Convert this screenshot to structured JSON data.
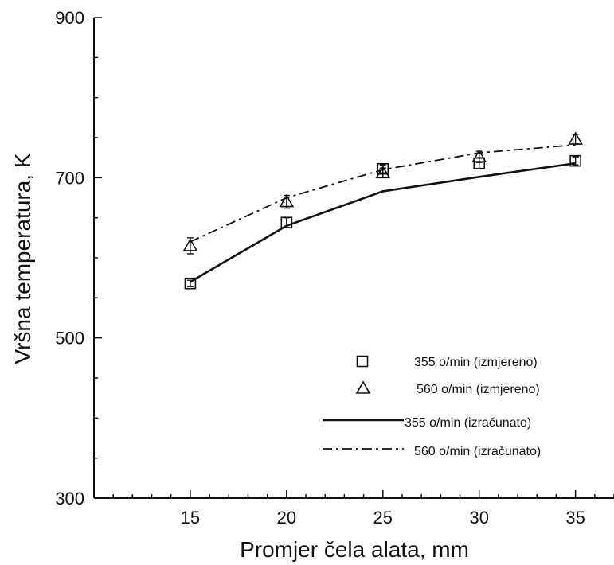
{
  "chart_data": {
    "type": "line",
    "title": "",
    "xlabel": "Promjer čela alata, mm",
    "ylabel": "Vršna temperatura, K",
    "xlim": [
      10,
      37
    ],
    "ylim": [
      300,
      900
    ],
    "x_ticks": [
      15,
      20,
      25,
      30,
      35
    ],
    "y_ticks": [
      300,
      500,
      700,
      900
    ],
    "grid": false,
    "legend_position": "bottom-right",
    "series": [
      {
        "name": "355 o/min (izmjereno)",
        "style": "square-markers",
        "color": "#111111",
        "x": [
          15,
          20,
          25,
          30,
          35
        ],
        "y": [
          568,
          644,
          711,
          718,
          721
        ],
        "error": [
          4,
          6,
          5,
          7,
          5
        ]
      },
      {
        "name": "560 o/min (izmjereno)",
        "style": "triangle-markers",
        "color": "#111111",
        "x": [
          15,
          20,
          25,
          30,
          35
        ],
        "y": [
          615,
          670,
          706,
          726,
          748
        ],
        "error": [
          10,
          8,
          6,
          7,
          6
        ]
      },
      {
        "name": "355 o/min (izračunato)",
        "style": "solid-line",
        "color": "#111111",
        "x": [
          15,
          20,
          25,
          30,
          35
        ],
        "y": [
          570,
          640,
          683,
          701,
          718
        ]
      },
      {
        "name": "560 o/min (izračunato)",
        "style": "dash-dot-line",
        "color": "#111111",
        "x": [
          15,
          20,
          25,
          30,
          35
        ],
        "y": [
          620,
          675,
          710,
          731,
          741
        ]
      }
    ]
  }
}
